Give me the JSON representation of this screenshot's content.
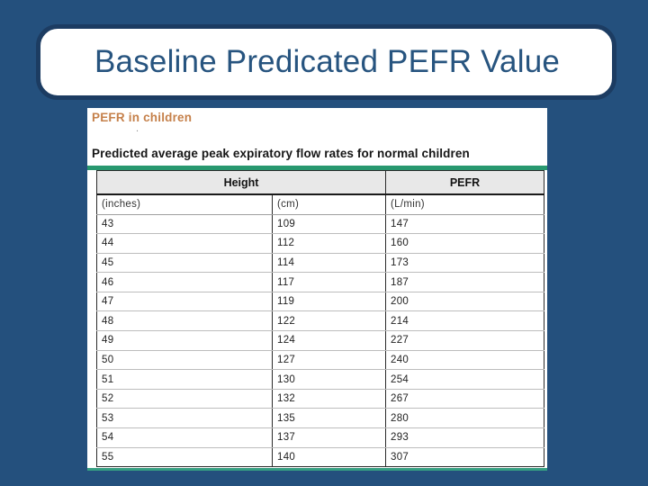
{
  "slide_title": "Baseline Predicated PEFR Value",
  "content": {
    "heading": "PEFR in children",
    "period_mark": ".",
    "subtitle": "Predicted average peak expiratory flow rates for normal children"
  },
  "chart_data": {
    "type": "table",
    "title": "Predicted average peak expiratory flow rates for normal children",
    "column_groups": [
      {
        "label": "Height",
        "span": 2
      },
      {
        "label": "PEFR",
        "span": 1
      }
    ],
    "columns": [
      "Height (inches)",
      "Height (cm)",
      "PEFR (L/min)"
    ],
    "unit_row": [
      "(inches)",
      "(cm)",
      "(L/min)"
    ],
    "rows": [
      [
        "43",
        "109",
        "147"
      ],
      [
        "44",
        "112",
        "160"
      ],
      [
        "45",
        "114",
        "173"
      ],
      [
        "46",
        "117",
        "187"
      ],
      [
        "47",
        "119",
        "200"
      ],
      [
        "48",
        "122",
        "214"
      ],
      [
        "49",
        "124",
        "227"
      ],
      [
        "50",
        "127",
        "240"
      ],
      [
        "51",
        "130",
        "254"
      ],
      [
        "52",
        "132",
        "267"
      ],
      [
        "53",
        "135",
        "280"
      ],
      [
        "54",
        "137",
        "293"
      ],
      [
        "55",
        "140",
        "307"
      ]
    ]
  },
  "colors": {
    "slide_background": "#24507D",
    "title_box_border": "#1C3C62",
    "title_text": "#27547F",
    "heading_orange": "#C5804A",
    "green_rule_top": "#28986F",
    "green_rule_bottom": "#37A083",
    "header_row_background": "#E8E8E8"
  }
}
